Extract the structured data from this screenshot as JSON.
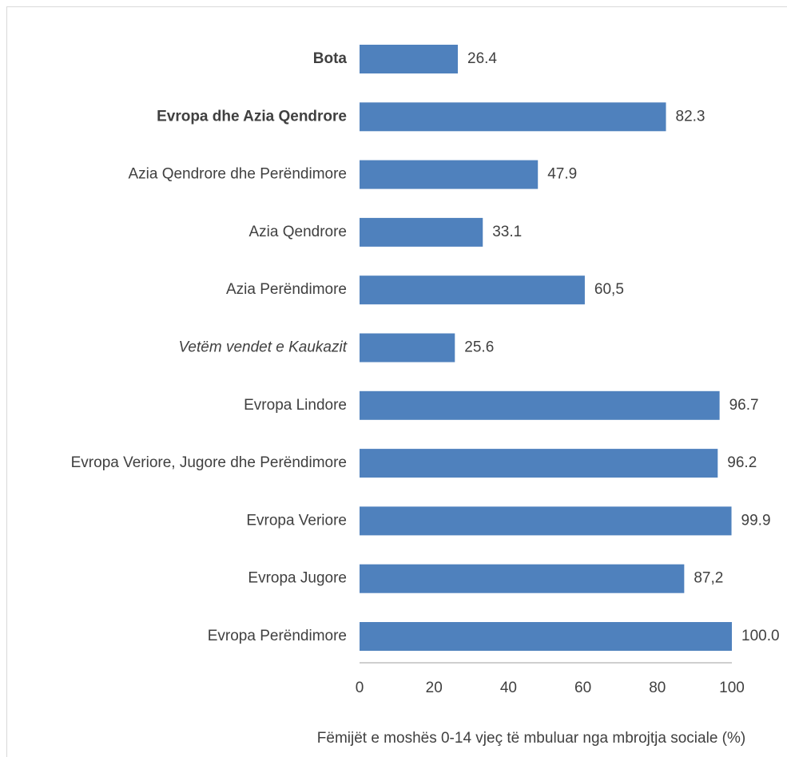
{
  "chart_data": {
    "type": "bar",
    "orientation": "horizontal",
    "x_label": "Fëmijët e moshës 0-14 vjeç të mbuluar nga mbrojtja sociale (%)",
    "categories": [
      "Bota",
      "Evropa dhe Azia Qendrore",
      "Azia Qendrore dhe Perëndimore",
      "Azia Qendrore",
      "Azia Perëndimore",
      "Vetëm vendet e Kaukazit",
      "Evropa Lindore",
      "Evropa Veriore, Jugore dhe Perëndimore",
      "Evropa Veriore",
      "Evropa Jugore",
      "Evropa Perëndimore"
    ],
    "category_font": [
      "bold",
      "bold",
      "normal",
      "normal",
      "normal",
      "italic",
      "normal",
      "normal",
      "normal",
      "normal",
      "normal"
    ],
    "values": [
      26.4,
      82.3,
      47.9,
      33.1,
      60.5,
      25.6,
      96.7,
      96.2,
      99.9,
      87.2,
      100
    ],
    "value_labels": [
      "26.4",
      "82.3",
      "47.9",
      "33.1",
      "60,5",
      "25.6",
      "96.7",
      "96.2",
      "99.9",
      "87,2",
      "100.0"
    ],
    "color": "#4f81bd",
    "xlim": [
      0,
      100
    ],
    "xticks": [
      0,
      20,
      40,
      60,
      80,
      100
    ],
    "grid": false
  }
}
